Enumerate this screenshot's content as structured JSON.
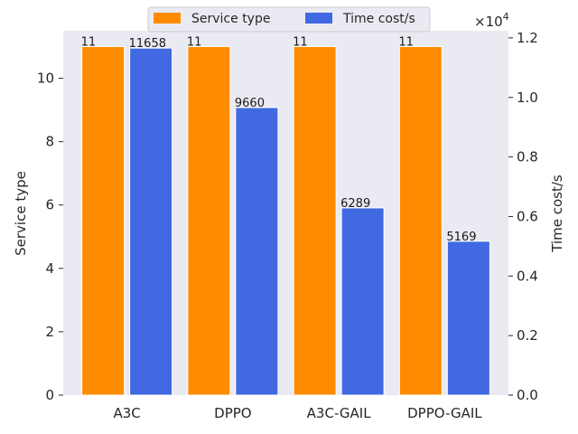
{
  "chart_data": {
    "type": "bar",
    "title": "",
    "xlabel": "",
    "categories": [
      "A3C",
      "DPPO",
      "A3C-GAIL",
      "DPPO-GAIL"
    ],
    "series": [
      {
        "name": "Service type",
        "axis": "left",
        "color": "#ff8c00",
        "values": [
          11,
          11,
          11,
          11
        ],
        "value_labels": [
          "11",
          "11",
          "11",
          "11"
        ]
      },
      {
        "name": "Time cost/s",
        "axis": "right",
        "color": "#4169e1",
        "values": [
          11658,
          9660,
          6289,
          5169
        ],
        "value_labels": [
          "11658",
          "9660",
          "6289",
          "5169"
        ]
      }
    ],
    "y_left": {
      "label": "Service type",
      "lim": [
        0,
        11.5
      ],
      "ticks": [
        0,
        2,
        4,
        6,
        8,
        10
      ],
      "tick_labels": [
        "0",
        "2",
        "4",
        "6",
        "8",
        "10"
      ]
    },
    "y_right": {
      "label": "Time cost/s",
      "lim": [
        0,
        12240
      ],
      "scale": 10000,
      "offset_text": "×10",
      "offset_exponent": "4",
      "ticks": [
        0,
        0.2,
        0.4,
        0.6,
        0.8,
        1.0,
        1.2
      ],
      "tick_labels": [
        "0.0",
        "0.2",
        "0.4",
        "0.6",
        "0.8",
        "1.0",
        "1.2"
      ]
    },
    "grid": false,
    "legend": {
      "position": "top-center",
      "entries": [
        "Service type",
        "Time cost/s"
      ]
    },
    "background": "#eaeaf2"
  }
}
